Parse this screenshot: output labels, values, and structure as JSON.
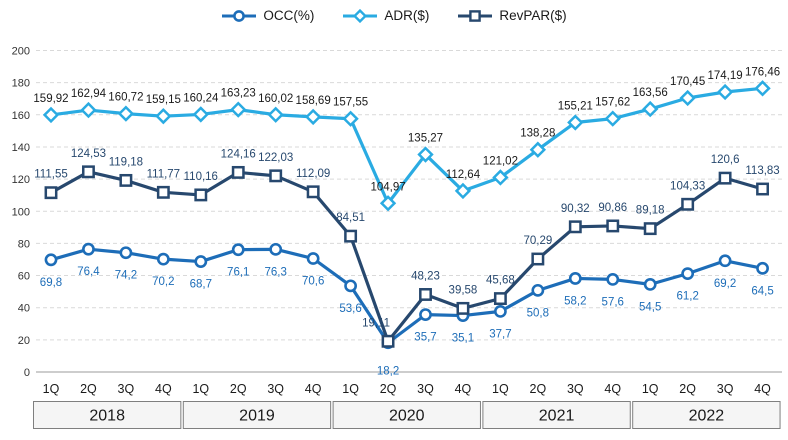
{
  "chart_data": {
    "type": "line",
    "title": "",
    "xlabel": "",
    "ylabel": "",
    "ylim": [
      0,
      200
    ],
    "y_ticks": [
      200,
      180,
      160,
      140,
      120,
      100,
      80,
      60,
      40,
      20,
      0
    ],
    "grid": "horizontal-dashed",
    "legend_position": "top-center",
    "categories": [
      "1Q",
      "2Q",
      "3Q",
      "4Q",
      "1Q",
      "2Q",
      "3Q",
      "4Q",
      "1Q",
      "2Q",
      "3Q",
      "4Q",
      "1Q",
      "2Q",
      "3Q",
      "4Q",
      "1Q",
      "2Q",
      "3Q",
      "4Q"
    ],
    "year_groups": [
      "2018",
      "2019",
      "2020",
      "2021",
      "2022"
    ],
    "series": [
      {
        "name": "OCC(%)",
        "marker": "circle",
        "color": "#1d6db8",
        "label_color": "#1d6db8",
        "values": [
          69.8,
          76.4,
          74.2,
          70.2,
          68.7,
          76.1,
          76.3,
          70.6,
          53.6,
          18.2,
          35.7,
          35.1,
          37.7,
          50.8,
          58.2,
          57.6,
          54.5,
          61.2,
          69.2,
          64.5
        ],
        "labels": [
          "69,8",
          "76,4",
          "74,2",
          "70,2",
          "68,7",
          "76,1",
          "76,3",
          "70,6",
          "53,6",
          "18,2",
          "35,7",
          "35,1",
          "37,7",
          "50,8",
          "58,2",
          "57,6",
          "54,5",
          "61,2",
          "69,2",
          "64,5"
        ]
      },
      {
        "name": "ADR($)",
        "marker": "diamond",
        "color": "#2aabe2",
        "label_color": "#1a1a1a",
        "values": [
          159.92,
          162.94,
          160.72,
          159.15,
          160.24,
          163.23,
          160.02,
          158.69,
          157.55,
          104.97,
          135.27,
          112.64,
          121.02,
          138.28,
          155.21,
          157.62,
          163.56,
          170.45,
          174.19,
          176.46
        ],
        "labels": [
          "159,92",
          "162,94",
          "160,72",
          "159,15",
          "160,24",
          "163,23",
          "160,02",
          "158,69",
          "157,55",
          "104,97",
          "135,27",
          "112,64",
          "121,02",
          "138,28",
          "155,21",
          "157,62",
          "163,56",
          "170,45",
          "174,19",
          "176,46"
        ]
      },
      {
        "name": "RevPAR($)",
        "marker": "square",
        "color": "#27486e",
        "label_color": "#27486e",
        "values": [
          111.55,
          124.53,
          119.18,
          111.77,
          110.16,
          124.16,
          122.03,
          112.09,
          84.51,
          19.11,
          48.23,
          39.58,
          45.68,
          70.29,
          90.32,
          90.86,
          89.18,
          104.33,
          120.6,
          113.83
        ],
        "labels": [
          "111,55",
          "124,53",
          "119,18",
          "111,77",
          "110,16",
          "124,16",
          "122,03",
          "112,09",
          "84,51",
          "19,11",
          "48,23",
          "39,58",
          "45,68",
          "70,29",
          "90,32",
          "90,86",
          "89,18",
          "104,33",
          "120,6",
          "113,83"
        ]
      }
    ],
    "style": {
      "grid_color": "#d9d9d9",
      "axis_line_color": "#9b9b9b",
      "tick_label_color": "#333333",
      "quarter_label_color": "#1a1a1a",
      "year_box_fill": "#f5f5f5",
      "year_box_border": "#7f7f7f",
      "year_label_color": "#1a1a1a"
    }
  }
}
